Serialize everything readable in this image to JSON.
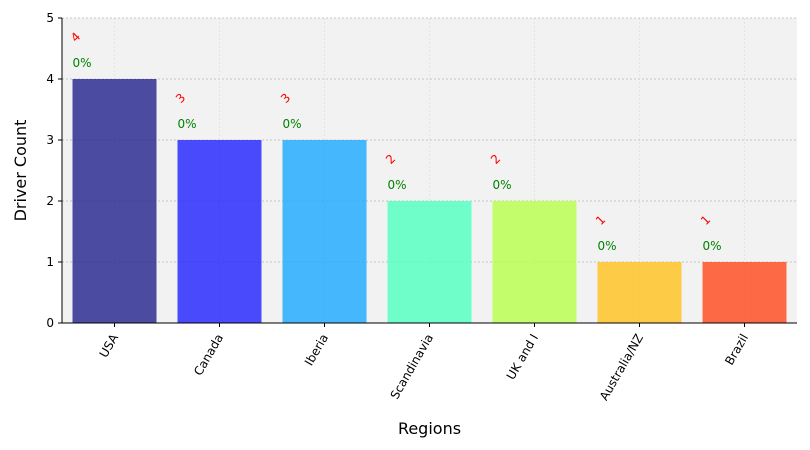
{
  "chart_data": {
    "type": "bar",
    "categories": [
      "USA",
      "Canada",
      "Iberia",
      "Scandinavia",
      "UK and I",
      "Australia/NZ",
      "Brazil"
    ],
    "values": [
      4,
      3,
      3,
      2,
      2,
      1,
      1
    ],
    "value_labels": [
      "4",
      "3",
      "3",
      "2",
      "2",
      "1",
      "1"
    ],
    "percent_labels": [
      "0%",
      "0%",
      "0%",
      "0%",
      "0%",
      "0%",
      "0%"
    ],
    "colors": [
      "#26268f",
      "#2424ff",
      "#1eaaff",
      "#52ffbf",
      "#b9ff4d",
      "#ffc21f",
      "#ff4b1f"
    ],
    "bar_opacity": 0.82,
    "xlabel": "Regions",
    "ylabel": "Driver Count",
    "ylim": [
      0,
      5
    ],
    "yticks": [
      0,
      1,
      2,
      3,
      4,
      5
    ],
    "grid": true,
    "plot_background": "#f2f2f2"
  }
}
